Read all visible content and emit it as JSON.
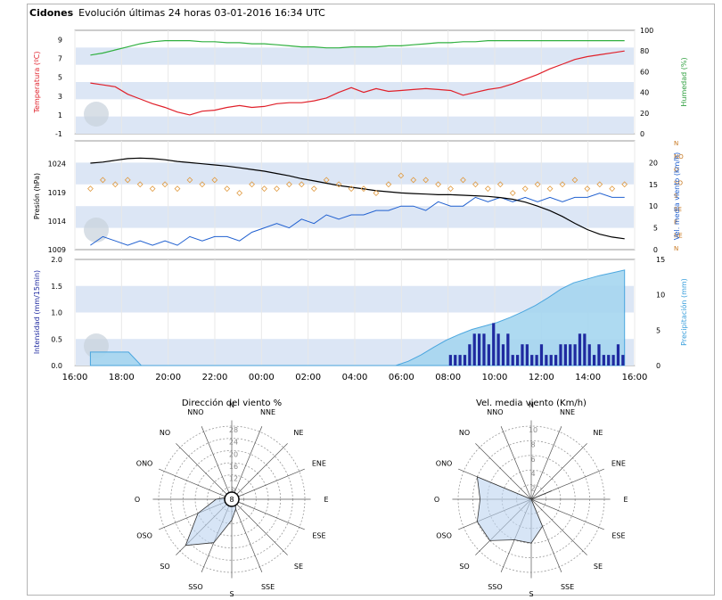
{
  "header": {
    "station": "Cidones",
    "subtitle": "Evolución últimas 24 horas 03-01-2016 16:34 UTC"
  },
  "colors": {
    "band": "#dce6f5",
    "grid": "#e8e8e8",
    "temp": "#e0202a",
    "humidity": "#30b040",
    "pressure": "#000000",
    "wind": "#2060d0",
    "dir_marker": "#e09a40",
    "bars": "#1f2aa0",
    "precip_fill": "#a6d6f0",
    "precip_line": "#3a9fdc",
    "hum_axis": "#30a040",
    "wind_axis": "#2060d0",
    "precip_axis": "#3a9fdc",
    "dir_axis": "#c87820",
    "int_axis": "#1f2aa0"
  },
  "time_axis": [
    "16:00",
    "18:00",
    "20:00",
    "22:00",
    "00:00",
    "02:00",
    "04:00",
    "06:00",
    "08:00",
    "10:00",
    "12:00",
    "14:00",
    "16:00"
  ],
  "chart_data": [
    {
      "type": "line",
      "x_start": "16:00",
      "x_end": "16:34",
      "ylabel": "Temperatura (ºC)",
      "ylabel2": "Humedad (%)",
      "yticks": [
        "-1",
        "1",
        "3",
        "5",
        "7",
        "9"
      ],
      "yticks2": [
        "0",
        "20",
        "40",
        "60",
        "80",
        "100"
      ],
      "ylim": [
        -1,
        10
      ],
      "ylim2": [
        0,
        100
      ],
      "series": [
        {
          "name": "Temperatura (ºC)",
          "axis": "left",
          "values": [
            4.4,
            4.2,
            4.0,
            3.2,
            2.7,
            2.2,
            1.8,
            1.3,
            1.0,
            1.4,
            1.5,
            1.8,
            2.0,
            1.8,
            1.9,
            2.2,
            2.3,
            2.3,
            2.5,
            2.8,
            3.4,
            3.9,
            3.4,
            3.8,
            3.5,
            3.6,
            3.7,
            3.8,
            3.7,
            3.6,
            3.1,
            3.4,
            3.7,
            3.9,
            4.3,
            4.8,
            5.3,
            5.9,
            6.4,
            6.9,
            7.2,
            7.4,
            7.6,
            7.8
          ]
        },
        {
          "name": "Humedad (%)",
          "axis": "right",
          "values": [
            76,
            78,
            81,
            84,
            87,
            89,
            90,
            90,
            90,
            89,
            89,
            88,
            88,
            87,
            87,
            86,
            85,
            84,
            84,
            83,
            83,
            84,
            84,
            84,
            85,
            85,
            86,
            87,
            88,
            88,
            89,
            89,
            90,
            90,
            90,
            90,
            90,
            90,
            90,
            90,
            90,
            90,
            90,
            90
          ]
        }
      ]
    },
    {
      "type": "line",
      "ylabel": "Presión (hPa)",
      "ylabel2": "Vel. media viento (km/h)",
      "yticks": [
        "1009",
        "1014",
        "1019",
        "1024"
      ],
      "yticks2": [
        "0",
        "5",
        "10",
        "15",
        "20"
      ],
      "dir_labels": [
        "N",
        "NE",
        "E",
        "SE",
        "S",
        "SO",
        "O",
        "NO",
        "N"
      ],
      "ylim": [
        1009,
        1028
      ],
      "ylim2": [
        0,
        25
      ],
      "series": [
        {
          "name": "Presión (hPa)",
          "axis": "left",
          "values": [
            1024.1,
            1024.3,
            1024.6,
            1024.9,
            1025.0,
            1024.9,
            1024.7,
            1024.4,
            1024.2,
            1024.0,
            1023.8,
            1023.6,
            1023.3,
            1023.0,
            1022.7,
            1022.3,
            1021.9,
            1021.4,
            1021.0,
            1020.6,
            1020.2,
            1019.9,
            1019.6,
            1019.3,
            1019.1,
            1018.9,
            1018.8,
            1018.7,
            1018.6,
            1018.6,
            1018.5,
            1018.4,
            1018.3,
            1018.1,
            1017.8,
            1017.3,
            1016.6,
            1015.8,
            1014.8,
            1013.6,
            1012.5,
            1011.7,
            1011.2,
            1010.9
          ]
        },
        {
          "name": "Vel. media viento (km/h)",
          "axis": "right",
          "values": [
            1,
            3,
            2,
            1,
            2,
            1,
            2,
            1,
            3,
            2,
            3,
            3,
            2,
            4,
            5,
            6,
            5,
            7,
            6,
            8,
            7,
            8,
            8,
            9,
            9,
            10,
            10,
            9,
            11,
            10,
            10,
            12,
            11,
            12,
            11,
            12,
            11,
            12,
            11,
            12,
            12,
            13,
            12,
            12
          ]
        },
        {
          "name": "Dirección",
          "axis": "dir",
          "values": [
            14,
            16,
            15,
            16,
            15,
            14,
            15,
            14,
            16,
            15,
            16,
            14,
            13,
            15,
            14,
            14,
            15,
            15,
            14,
            16,
            15,
            14,
            14,
            13,
            15,
            17,
            16,
            16,
            15,
            14,
            16,
            15,
            14,
            15,
            13,
            14,
            15,
            14,
            15,
            16,
            14,
            15,
            14,
            15
          ]
        }
      ]
    },
    {
      "type": "bar",
      "ylabel": "Intensidad (mm/15min)",
      "ylabel2": "Precipitación (mm)",
      "yticks": [
        "0.0",
        "0.5",
        "1.0",
        "1.5",
        "2.0"
      ],
      "yticks2": [
        "0",
        "5",
        "10",
        "15"
      ],
      "ylim": [
        0,
        2.0
      ],
      "ylim2": [
        0,
        15
      ],
      "bars": [
        0.2,
        0.2,
        0.2,
        0.2,
        0.4,
        0.6,
        0.6,
        0.6,
        0.4,
        0.8,
        0.6,
        0.4,
        0.6,
        0.2,
        0.2,
        0.4,
        0.4,
        0.2,
        0.2,
        0.4,
        0.2,
        0.2,
        0.2,
        0.4,
        0.4,
        0.4,
        0.4,
        0.6,
        0.6,
        0.4,
        0.2,
        0.4,
        0.2,
        0.2,
        0.2,
        0.4,
        0.2
      ],
      "precip_mm": [
        1.9,
        1.9,
        1.9,
        1.9,
        0,
        0,
        0,
        0,
        0,
        0,
        0,
        0,
        0,
        0,
        0,
        0,
        0,
        0,
        0,
        0,
        0,
        0,
        0,
        0,
        0,
        0.6,
        1.5,
        2.6,
        3.6,
        4.4,
        5.1,
        5.6,
        6.1,
        6.8,
        7.6,
        8.5,
        9.6,
        10.8,
        11.7,
        12.2,
        12.7,
        13.1,
        13.5
      ]
    },
    {
      "type": "radar",
      "title": "Dirección del viento %",
      "directions": [
        "N",
        "NNE",
        "NE",
        "ENE",
        "E",
        "ESE",
        "SE",
        "SSE",
        "S",
        "SSO",
        "SO",
        "OSO",
        "O",
        "ONO",
        "NO",
        "NNO"
      ],
      "ring_labels": [
        "8",
        "12",
        "16",
        "20",
        "24",
        "28"
      ],
      "center_value": "8",
      "rmax": 28,
      "values": [
        0,
        0,
        0,
        0,
        0,
        0,
        2,
        4,
        8,
        18,
        25,
        14,
        6,
        2,
        0,
        0
      ]
    },
    {
      "type": "radar",
      "title": "Vel. media viento (Km/h)",
      "directions": [
        "N",
        "NNE",
        "NE",
        "ENE",
        "E",
        "ESE",
        "SE",
        "SSE",
        "S",
        "SSO",
        "SO",
        "OSO",
        "O",
        "ONO",
        "NO",
        "NNO"
      ],
      "ring_labels": [
        "2",
        "4",
        "6",
        "8",
        "10"
      ],
      "rmax": 10,
      "values": [
        0,
        0,
        0,
        3,
        0,
        0,
        0,
        4,
        6,
        6,
        8,
        8,
        7,
        8,
        0,
        0
      ]
    }
  ]
}
